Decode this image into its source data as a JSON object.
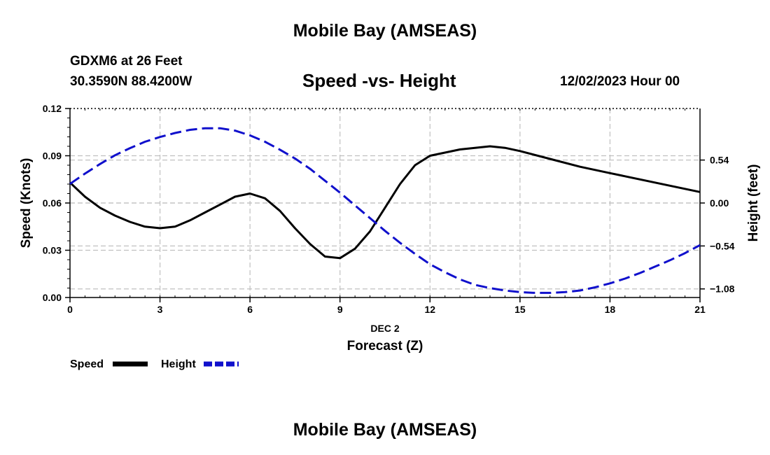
{
  "header": {
    "title": "Mobile Bay (AMSEAS)",
    "station": "GDXM6 at 26 Feet",
    "coordinates": "30.3590N  88.4200W",
    "subtitle": "Speed -vs- Height",
    "datetime": "12/02/2023 Hour 00"
  },
  "footer": {
    "title": "Mobile Bay (AMSEAS)"
  },
  "chart_data": {
    "type": "line",
    "title": "Speed -vs- Height",
    "xlabel": "Forecast (Z)",
    "xlabel_date": "DEC 2",
    "ylabel": "Speed (Knots)",
    "ylabel_right": "Height (feet)",
    "xlim": [
      0,
      21
    ],
    "ylim": [
      0,
      0.12
    ],
    "ylim_right": [
      -1.188,
      1.188
    ],
    "x_ticks": [
      "0",
      "3",
      "6",
      "9",
      "12",
      "15",
      "18",
      "21"
    ],
    "y_ticks": [
      "0.00",
      "0.03",
      "0.06",
      "0.09",
      "0.12"
    ],
    "y_ticks_right": [
      "0.54",
      "0.00",
      "−0.54",
      "−1.08"
    ],
    "y_ticks_right_values": [
      0.54,
      0,
      -0.54,
      -1.08
    ],
    "grid": true,
    "series": [
      {
        "name": "Speed",
        "axis": "left",
        "color": "#000000",
        "style": "solid",
        "x": [
          0,
          0.5,
          1,
          1.5,
          2,
          2.5,
          3,
          3.5,
          4,
          4.5,
          5,
          5.5,
          6,
          6.5,
          7,
          7.5,
          8,
          8.5,
          9,
          9.5,
          10,
          10.5,
          11,
          11.5,
          12,
          12.5,
          13,
          13.5,
          14,
          14.5,
          15,
          16,
          17,
          18,
          19,
          20,
          21
        ],
        "values": [
          0.073,
          0.064,
          0.057,
          0.052,
          0.048,
          0.045,
          0.044,
          0.045,
          0.049,
          0.054,
          0.059,
          0.064,
          0.066,
          0.063,
          0.055,
          0.044,
          0.034,
          0.026,
          0.025,
          0.031,
          0.042,
          0.057,
          0.072,
          0.084,
          0.09,
          0.092,
          0.094,
          0.095,
          0.096,
          0.095,
          0.093,
          0.088,
          0.083,
          0.079,
          0.075,
          0.071,
          0.067
        ]
      },
      {
        "name": "Height",
        "axis": "right",
        "color": "#1010cc",
        "style": "dashed",
        "x": [
          0,
          0.5,
          1,
          1.5,
          2,
          2.5,
          3,
          3.5,
          4,
          4.5,
          5,
          5.5,
          6,
          6.5,
          7,
          7.5,
          8,
          8.5,
          9,
          9.5,
          10,
          10.5,
          11,
          11.5,
          12,
          12.5,
          13,
          13.5,
          14,
          14.5,
          15,
          15.5,
          16,
          16.5,
          17,
          17.5,
          18,
          18.5,
          19,
          19.5,
          20,
          20.5,
          21
        ],
        "values": [
          0.24,
          0.37,
          0.49,
          0.6,
          0.69,
          0.77,
          0.83,
          0.88,
          0.92,
          0.94,
          0.94,
          0.91,
          0.85,
          0.77,
          0.67,
          0.56,
          0.43,
          0.28,
          0.13,
          -0.03,
          -0.19,
          -0.35,
          -0.5,
          -0.64,
          -0.77,
          -0.87,
          -0.96,
          -1.03,
          -1.07,
          -1.1,
          -1.12,
          -1.13,
          -1.13,
          -1.12,
          -1.1,
          -1.06,
          -1.01,
          -0.95,
          -0.88,
          -0.8,
          -0.72,
          -0.63,
          -0.53
        ]
      }
    ],
    "legend": {
      "placement": "bottom-left",
      "items": [
        "Speed",
        "Height"
      ]
    }
  }
}
